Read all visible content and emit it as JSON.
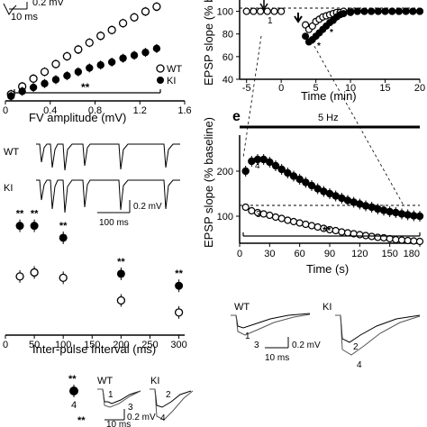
{
  "figure": {
    "top_scale_label": "10 ms",
    "top_scale_fragment": "0.2 mV",
    "panel_letter_e": "e"
  },
  "chart_data": [
    {
      "id": "fv-vs-epsp",
      "type": "scatter",
      "xlabel": "FV amplitude (mV)",
      "xticks": [
        "0",
        "0.4",
        "0.8",
        "1.2",
        "1.6"
      ],
      "xlim": [
        0,
        1.6
      ],
      "ylim": [
        0,
        10
      ],
      "legend": {
        "placement": "bottom-right",
        "entries": [
          "WT",
          "KI"
        ]
      },
      "significance": "**",
      "series": [
        {
          "name": "WT",
          "marker": "open-circle",
          "x": [
            0.05,
            0.15,
            0.25,
            0.35,
            0.45,
            0.55,
            0.65,
            0.75,
            0.85,
            0.95,
            1.05,
            1.15,
            1.25,
            1.35
          ],
          "y": [
            0.5,
            1.3,
            2.1,
            2.8,
            3.6,
            4.4,
            5.1,
            5.8,
            6.5,
            7.1,
            7.8,
            8.4,
            9.0,
            9.5
          ]
        },
        {
          "name": "KI",
          "marker": "filled-circle",
          "x": [
            0.05,
            0.15,
            0.25,
            0.35,
            0.45,
            0.55,
            0.65,
            0.75,
            0.85,
            0.95,
            1.05,
            1.15,
            1.25,
            1.35
          ],
          "y": [
            0.3,
            0.8,
            1.2,
            1.6,
            2.0,
            2.4,
            2.8,
            3.2,
            3.5,
            3.8,
            4.2,
            4.5,
            4.8,
            5.2
          ]
        }
      ]
    },
    {
      "id": "ppr",
      "type": "scatter",
      "xlabel": "Inter-pulse Interval (ms)",
      "xticks": [
        "0",
        "50",
        "100",
        "150",
        "200",
        "250",
        "300"
      ],
      "xlim": [
        0,
        310
      ],
      "ylim": [
        0,
        10
      ],
      "series": [
        {
          "name": "KI",
          "marker": "filled-circle",
          "x": [
            25,
            50,
            100,
            200,
            300
          ],
          "y": [
            8.2,
            8.2,
            7.3,
            4.6,
            3.7
          ],
          "significance": [
            "**",
            "**",
            "**",
            "**",
            "**"
          ]
        },
        {
          "name": "WT",
          "marker": "open-circle",
          "x": [
            25,
            50,
            100,
            200,
            300
          ],
          "y": [
            4.4,
            4.7,
            4.3,
            2.6,
            1.7
          ]
        }
      ]
    },
    {
      "id": "ltp-timecourse",
      "type": "scatter",
      "ylabel": "EPSP slope (% base",
      "xlabel": "Time (min)",
      "xticks": [
        "-5",
        "0",
        "5",
        "10",
        "15",
        "20"
      ],
      "yticks": [
        "100",
        "80",
        "60",
        "40"
      ],
      "xlim": [
        -6,
        20
      ],
      "ylim": [
        40,
        110
      ],
      "series": [
        {
          "name": "WT",
          "marker": "open-circle",
          "x": [
            -5,
            -4,
            -3,
            -2,
            -1,
            0,
            3.5,
            4,
            4.5,
            5,
            5.5,
            6,
            6.5,
            7,
            7.5,
            8,
            8.5,
            9,
            10,
            11,
            12,
            13,
            14,
            15,
            16,
            17,
            18,
            19,
            20
          ],
          "y": [
            100,
            100,
            100,
            100,
            100,
            100,
            88,
            84,
            87,
            91,
            93,
            95,
            96,
            97,
            98,
            99,
            99,
            100,
            100,
            100,
            100,
            100,
            100,
            100,
            100,
            100,
            100,
            100,
            100
          ]
        },
        {
          "name": "KI",
          "marker": "filled-circle",
          "x": [
            3.5,
            4,
            4.5,
            5,
            5.5,
            6,
            6.5,
            7,
            7.5,
            8,
            8.5,
            9,
            10,
            11,
            12,
            13,
            14,
            15,
            16,
            17,
            18,
            19,
            20
          ],
          "y": [
            78,
            73,
            75,
            78,
            81,
            84,
            87,
            90,
            92,
            95,
            97,
            98,
            99,
            100,
            100,
            100,
            100,
            100,
            100,
            100,
            100,
            100,
            100
          ]
        }
      ],
      "annotations": [
        "1",
        "**",
        "*",
        "*"
      ]
    },
    {
      "id": "5hz-timecourse",
      "type": "scatter",
      "ylabel": "EPSP slope (% baseline)",
      "xlabel": "Time (s)",
      "stim_label": "5 Hz",
      "xticks": [
        "0",
        "30",
        "60",
        "90",
        "120",
        "150",
        "180"
      ],
      "yticks": [
        "200",
        "100"
      ],
      "xlim": [
        0,
        180
      ],
      "ylim": [
        40,
        280
      ],
      "significance": "**",
      "series": [
        {
          "name": "KI",
          "marker": "filled-circle",
          "x": [
            6,
            12,
            18,
            24,
            30,
            36,
            42,
            48,
            54,
            60,
            66,
            72,
            78,
            84,
            90,
            96,
            102,
            108,
            114,
            120,
            126,
            132,
            138,
            144,
            150,
            156,
            162,
            168,
            174,
            180
          ],
          "y": [
            200,
            222,
            226,
            226,
            220,
            212,
            204,
            196,
            189,
            182,
            175,
            168,
            161,
            155,
            150,
            145,
            140,
            135,
            131,
            127,
            123,
            120,
            116,
            113,
            110,
            108,
            105,
            103,
            101,
            100
          ],
          "labels": {
            "4": "4"
          }
        },
        {
          "name": "WT",
          "marker": "open-circle",
          "x": [
            6,
            12,
            18,
            24,
            30,
            36,
            42,
            48,
            54,
            60,
            66,
            72,
            78,
            84,
            90,
            96,
            102,
            108,
            114,
            120,
            126,
            132,
            138,
            144,
            150,
            156,
            162,
            168,
            174,
            180
          ],
          "y": [
            120,
            112,
            108,
            105,
            102,
            98,
            95,
            91,
            88,
            85,
            82,
            79,
            76,
            73,
            70,
            68,
            65,
            63,
            61,
            59,
            57,
            55,
            53,
            52,
            50,
            48,
            47,
            46,
            45,
            44
          ],
          "labels": {
            "3": "3"
          }
        }
      ]
    }
  ],
  "traces": {
    "ppr_row_labels": [
      "WT",
      "KI"
    ],
    "ppr_scale": {
      "time": "100 ms",
      "amp": "0.2 mV"
    },
    "ltp_labels": {
      "wt": "WT",
      "ki": "KI",
      "n1": "1",
      "n2": "2",
      "n3": "3",
      "n4": "4"
    },
    "ltp_scale": {
      "time": "10 ms",
      "amp": "0.2 mV"
    },
    "bottom_labels": {
      "wt": "WT",
      "ki": "KI",
      "n1": "1",
      "n2": "2",
      "n3": "3",
      "n4": "4",
      "stars": "**",
      "num4": "4"
    },
    "bottom_scale": {
      "time": "10 ms",
      "amp": "0.2 mV"
    }
  }
}
